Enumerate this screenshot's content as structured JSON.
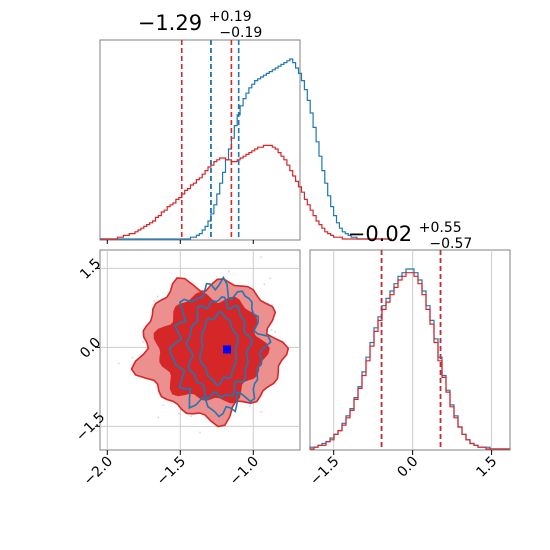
{
  "chart_data": [
    {
      "type": "histogram",
      "panel": "top-left",
      "title_main": "−1.29",
      "title_sup": "+0.19",
      "title_sub": "−0.19",
      "xlim": [
        -2.05,
        -0.68
      ],
      "series": [
        {
          "color": "#1f77b4",
          "bin_start": -2.05,
          "bin_width": 0.02,
          "counts": [
            0,
            0,
            0,
            0,
            0,
            0,
            0,
            0,
            0,
            0,
            0,
            0,
            0,
            0,
            0,
            0,
            0,
            0,
            0,
            0,
            0,
            0,
            0,
            0,
            0,
            0,
            0,
            0,
            0,
            0,
            0,
            1,
            1,
            2,
            3,
            5,
            7,
            10,
            14,
            19,
            25,
            31,
            37,
            44,
            50,
            56,
            63,
            69,
            74,
            78,
            81,
            84,
            86,
            88,
            89,
            90,
            91,
            92,
            93,
            94,
            95,
            96,
            97,
            98,
            99,
            100,
            98,
            95,
            92,
            88,
            83,
            77,
            70,
            62,
            54,
            46,
            38,
            31,
            24,
            18,
            13,
            9,
            6,
            4,
            3,
            2,
            1,
            1,
            0,
            0,
            0,
            0,
            0,
            0,
            0,
            0,
            0,
            0,
            0,
            0
          ]
        },
        {
          "color": "#d62728",
          "bin_start": -2.05,
          "bin_width": 0.02,
          "counts": [
            0,
            0,
            0,
            0,
            0,
            0,
            1,
            1,
            2,
            2,
            3,
            3,
            4,
            5,
            6,
            7,
            8,
            9,
            10,
            12,
            13,
            15,
            16,
            18,
            19,
            20,
            22,
            23,
            25,
            27,
            28,
            30,
            31,
            33,
            34,
            36,
            38,
            40,
            41,
            43,
            44,
            45,
            45,
            44,
            44,
            43,
            43,
            44,
            45,
            46,
            47,
            48,
            49,
            50,
            51,
            51,
            52,
            52,
            52,
            51,
            50,
            48,
            46,
            44,
            41,
            38,
            35,
            32,
            29,
            26,
            22,
            19,
            16,
            13,
            10,
            8,
            6,
            4,
            3,
            2,
            1,
            1,
            1,
            0,
            0,
            0,
            0,
            0,
            0,
            0,
            0,
            0,
            0,
            0,
            0,
            0,
            0,
            0,
            0,
            0
          ]
        }
      ],
      "quantile_lines": [
        {
          "color": "#1f77b4",
          "x": [
            -1.29,
            -1.1
          ]
        },
        {
          "color": "#d62728",
          "x": [
            -1.49,
            -1.15
          ]
        },
        {
          "color": "#1f77b4",
          "x": [
            -1.29
          ]
        }
      ]
    },
    {
      "type": "histogram",
      "panel": "bottom-right",
      "title_main": "−0.02",
      "title_sup": "+0.55",
      "title_sub": "−0.57",
      "xlim": [
        -1.95,
        1.85
      ],
      "xticks": [
        "−1.5",
        "0.0",
        "1.5"
      ],
      "xtick_values": [
        -1.5,
        0.0,
        1.5
      ],
      "series": [
        {
          "color": "#1f77b4",
          "bin_start": -1.95,
          "bin_width": 0.076,
          "counts": [
            1,
            1,
            2,
            3,
            4,
            6,
            8,
            10,
            14,
            18,
            22,
            28,
            34,
            42,
            50,
            58,
            66,
            72,
            78,
            82,
            86,
            90,
            94,
            96,
            98,
            98,
            96,
            92,
            86,
            78,
            70,
            60,
            50,
            40,
            32,
            24,
            18,
            12,
            8,
            5,
            3,
            2,
            1,
            1,
            1,
            0,
            0,
            0,
            0,
            0
          ]
        },
        {
          "color": "#d62728",
          "bin_start": -1.95,
          "bin_width": 0.076,
          "counts": [
            0,
            1,
            2,
            2,
            4,
            5,
            8,
            10,
            13,
            17,
            21,
            27,
            33,
            40,
            48,
            56,
            64,
            70,
            76,
            80,
            84,
            88,
            92,
            94,
            96,
            96,
            94,
            90,
            84,
            76,
            68,
            58,
            48,
            39,
            31,
            23,
            17,
            12,
            8,
            5,
            3,
            2,
            1,
            1,
            0,
            0,
            0,
            0,
            0,
            0
          ]
        }
      ],
      "quantile_lines": [
        {
          "color": "#1f77b4",
          "x": [
            -0.59,
            0.53
          ]
        },
        {
          "color": "#d62728",
          "x": [
            -0.59,
            0.53
          ]
        }
      ]
    },
    {
      "type": "contour",
      "panel": "bottom-left",
      "xlim": [
        -2.05,
        -0.68
      ],
      "ylim": [
        -1.95,
        1.85
      ],
      "xticks": [
        "−2.0",
        "−1.5",
        "−1.0"
      ],
      "xtick_values": [
        -2.0,
        -1.5,
        -1.0
      ],
      "yticks": [
        "−1.5",
        "0.0",
        "1.5"
      ],
      "ytick_values": [
        -1.5,
        0.0,
        1.5
      ],
      "marker": {
        "x": -1.18,
        "y": -0.04,
        "color": "#0000ff"
      },
      "red_fill_inner": "#d62728",
      "red_fill_outer": "#eb8f8f",
      "red_line": "#d62728",
      "blue_line": "#1f77b4"
    }
  ]
}
